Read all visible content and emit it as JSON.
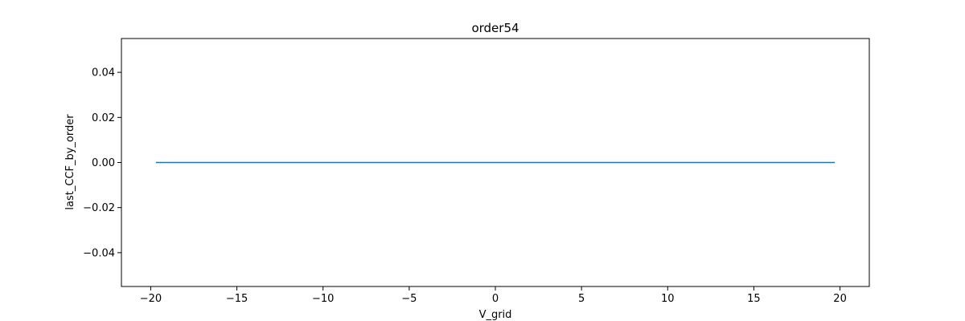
{
  "chart_data": {
    "type": "line",
    "title": "order54",
    "xlabel": "V_grid",
    "ylabel": "last_CCF_by_order",
    "xlim": [
      -21.7,
      21.7
    ],
    "ylim": [
      -0.055,
      0.055
    ],
    "xticks": [
      -20,
      -15,
      -10,
      -5,
      0,
      5,
      10,
      15,
      20
    ],
    "xtick_labels": [
      "−20",
      "−15",
      "−10",
      "−5",
      "0",
      "5",
      "10",
      "15",
      "20"
    ],
    "yticks": [
      -0.04,
      -0.02,
      0.0,
      0.02,
      0.04
    ],
    "ytick_labels": [
      "−0.04",
      "−0.02",
      "0.00",
      "0.02",
      "0.04"
    ],
    "grid": false,
    "series": [
      {
        "color": "#1f77b4",
        "x": [
          -19.7,
          19.7
        ],
        "y": [
          0.0,
          0.0
        ]
      }
    ]
  }
}
